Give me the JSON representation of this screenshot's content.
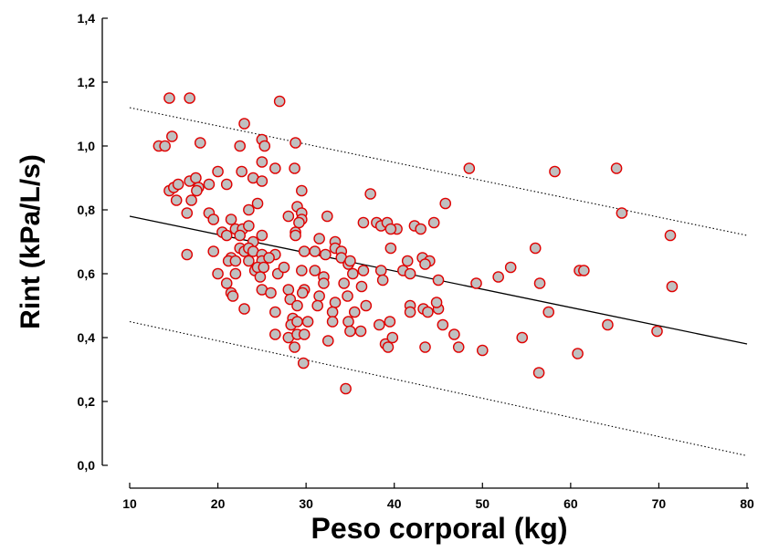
{
  "chart_data": {
    "type": "scatter",
    "xlabel": "Peso corporal (kg)",
    "ylabel": "Rint (kPa/L/s)",
    "xlim": [
      10,
      80
    ],
    "ylim": [
      0,
      1.4
    ],
    "x_ticks": [
      "10",
      "20",
      "30",
      "40",
      "50",
      "60",
      "70",
      "80"
    ],
    "y_ticks": [
      "0,0",
      "0,2",
      "0,4",
      "0,6",
      "0,8",
      "1,0",
      "1,2",
      "1,4"
    ],
    "grid": false,
    "colors": {
      "point_fill": "#c0c0c0",
      "point_edge": "#e00000",
      "lines": "#000000"
    },
    "regression": {
      "x": [
        10,
        80
      ],
      "y": [
        0.78,
        0.38
      ]
    },
    "prediction_band_upper": {
      "x": [
        10,
        80
      ],
      "y": [
        1.12,
        0.72
      ]
    },
    "prediction_band_lower": {
      "x": [
        10,
        80
      ],
      "y": [
        0.45,
        0.03
      ]
    },
    "points": [
      [
        14.5,
        1.15
      ],
      [
        16.8,
        1.15
      ],
      [
        27.0,
        1.14
      ],
      [
        23.0,
        1.07
      ],
      [
        14.8,
        1.03
      ],
      [
        25.0,
        1.02
      ],
      [
        25.3,
        1.0
      ],
      [
        22.5,
        1.0
      ],
      [
        13.3,
        1.0
      ],
      [
        14.0,
        1.0
      ],
      [
        18.0,
        1.01
      ],
      [
        28.8,
        1.01
      ],
      [
        25.0,
        0.95
      ],
      [
        26.5,
        0.93
      ],
      [
        28.7,
        0.93
      ],
      [
        48.5,
        0.93
      ],
      [
        58.2,
        0.92
      ],
      [
        65.2,
        0.93
      ],
      [
        20.0,
        0.92
      ],
      [
        22.7,
        0.92
      ],
      [
        16.8,
        0.89
      ],
      [
        17.5,
        0.9
      ],
      [
        21.0,
        0.88
      ],
      [
        24.0,
        0.9
      ],
      [
        25.0,
        0.89
      ],
      [
        19.0,
        0.88
      ],
      [
        14.5,
        0.86
      ],
      [
        15.0,
        0.87
      ],
      [
        15.5,
        0.88
      ],
      [
        17.8,
        0.87
      ],
      [
        17.6,
        0.86
      ],
      [
        29.5,
        0.86
      ],
      [
        37.3,
        0.85
      ],
      [
        15.3,
        0.83
      ],
      [
        17.0,
        0.83
      ],
      [
        24.5,
        0.82
      ],
      [
        45.8,
        0.82
      ],
      [
        29.0,
        0.81
      ],
      [
        16.5,
        0.79
      ],
      [
        19.0,
        0.79
      ],
      [
        23.5,
        0.8
      ],
      [
        28.0,
        0.78
      ],
      [
        29.5,
        0.79
      ],
      [
        29.5,
        0.77
      ],
      [
        32.4,
        0.78
      ],
      [
        65.8,
        0.79
      ],
      [
        21.5,
        0.77
      ],
      [
        19.5,
        0.77
      ],
      [
        29.2,
        0.76
      ],
      [
        36.5,
        0.76
      ],
      [
        38.0,
        0.76
      ],
      [
        38.5,
        0.75
      ],
      [
        39.2,
        0.76
      ],
      [
        40.3,
        0.74
      ],
      [
        39.6,
        0.74
      ],
      [
        42.3,
        0.75
      ],
      [
        43.0,
        0.74
      ],
      [
        44.5,
        0.76
      ],
      [
        22.0,
        0.74
      ],
      [
        22.8,
        0.74
      ],
      [
        23.5,
        0.75
      ],
      [
        28.8,
        0.73
      ],
      [
        20.5,
        0.73
      ],
      [
        21.0,
        0.72
      ],
      [
        22.5,
        0.72
      ],
      [
        25.0,
        0.72
      ],
      [
        28.8,
        0.72
      ],
      [
        31.5,
        0.71
      ],
      [
        24.0,
        0.7
      ],
      [
        33.3,
        0.7
      ],
      [
        71.3,
        0.72
      ],
      [
        22.5,
        0.68
      ],
      [
        23.0,
        0.67
      ],
      [
        23.5,
        0.68
      ],
      [
        24.0,
        0.67
      ],
      [
        25.0,
        0.66
      ],
      [
        26.5,
        0.66
      ],
      [
        29.8,
        0.67
      ],
      [
        31.0,
        0.67
      ],
      [
        33.3,
        0.68
      ],
      [
        34.0,
        0.67
      ],
      [
        39.6,
        0.68
      ],
      [
        56.0,
        0.68
      ],
      [
        16.5,
        0.66
      ],
      [
        19.5,
        0.67
      ],
      [
        21.5,
        0.65
      ],
      [
        21.2,
        0.64
      ],
      [
        22.0,
        0.64
      ],
      [
        23.5,
        0.64
      ],
      [
        25.0,
        0.64
      ],
      [
        25.8,
        0.65
      ],
      [
        32.2,
        0.66
      ],
      [
        34.0,
        0.65
      ],
      [
        34.8,
        0.63
      ],
      [
        35.0,
        0.64
      ],
      [
        41.5,
        0.64
      ],
      [
        43.2,
        0.65
      ],
      [
        44.0,
        0.64
      ],
      [
        24.2,
        0.61
      ],
      [
        24.5,
        0.62
      ],
      [
        25.2,
        0.62
      ],
      [
        26.8,
        0.6
      ],
      [
        27.5,
        0.62
      ],
      [
        29.5,
        0.61
      ],
      [
        31.0,
        0.61
      ],
      [
        35.3,
        0.6
      ],
      [
        36.5,
        0.61
      ],
      [
        38.5,
        0.61
      ],
      [
        41.0,
        0.61
      ],
      [
        41.8,
        0.6
      ],
      [
        43.5,
        0.63
      ],
      [
        53.2,
        0.62
      ],
      [
        51.8,
        0.59
      ],
      [
        61.0,
        0.61
      ],
      [
        61.5,
        0.61
      ],
      [
        20.0,
        0.6
      ],
      [
        22.0,
        0.6
      ],
      [
        24.8,
        0.59
      ],
      [
        32.0,
        0.59
      ],
      [
        32.0,
        0.57
      ],
      [
        34.3,
        0.57
      ],
      [
        36.3,
        0.56
      ],
      [
        38.7,
        0.58
      ],
      [
        45.0,
        0.58
      ],
      [
        49.3,
        0.57
      ],
      [
        56.5,
        0.57
      ],
      [
        71.5,
        0.56
      ],
      [
        21.0,
        0.57
      ],
      [
        25.0,
        0.55
      ],
      [
        26.0,
        0.54
      ],
      [
        28.0,
        0.55
      ],
      [
        29.8,
        0.55
      ],
      [
        29.6,
        0.54
      ],
      [
        31.5,
        0.53
      ],
      [
        21.5,
        0.54
      ],
      [
        21.7,
        0.53
      ],
      [
        34.7,
        0.53
      ],
      [
        23.0,
        0.49
      ],
      [
        26.5,
        0.48
      ],
      [
        28.2,
        0.52
      ],
      [
        29.0,
        0.5
      ],
      [
        31.3,
        0.5
      ],
      [
        33.3,
        0.51
      ],
      [
        33.0,
        0.48
      ],
      [
        35.5,
        0.48
      ],
      [
        36.8,
        0.5
      ],
      [
        41.8,
        0.5
      ],
      [
        41.8,
        0.48
      ],
      [
        43.3,
        0.49
      ],
      [
        43.8,
        0.48
      ],
      [
        45.0,
        0.49
      ],
      [
        44.8,
        0.51
      ],
      [
        57.5,
        0.48
      ],
      [
        28.5,
        0.46
      ],
      [
        28.3,
        0.44
      ],
      [
        29.0,
        0.45
      ],
      [
        30.2,
        0.45
      ],
      [
        33.0,
        0.45
      ],
      [
        34.8,
        0.45
      ],
      [
        35.0,
        0.42
      ],
      [
        36.2,
        0.42
      ],
      [
        38.3,
        0.44
      ],
      [
        39.5,
        0.45
      ],
      [
        45.5,
        0.44
      ],
      [
        46.8,
        0.41
      ],
      [
        64.2,
        0.44
      ],
      [
        26.5,
        0.41
      ],
      [
        28.0,
        0.4
      ],
      [
        29.0,
        0.41
      ],
      [
        29.8,
        0.41
      ],
      [
        32.5,
        0.39
      ],
      [
        39.0,
        0.38
      ],
      [
        39.8,
        0.4
      ],
      [
        39.3,
        0.37
      ],
      [
        43.5,
        0.37
      ],
      [
        47.3,
        0.37
      ],
      [
        28.7,
        0.37
      ],
      [
        50.0,
        0.36
      ],
      [
        54.5,
        0.4
      ],
      [
        60.8,
        0.35
      ],
      [
        69.8,
        0.42
      ],
      [
        29.7,
        0.32
      ],
      [
        34.5,
        0.24
      ],
      [
        56.4,
        0.29
      ]
    ]
  }
}
